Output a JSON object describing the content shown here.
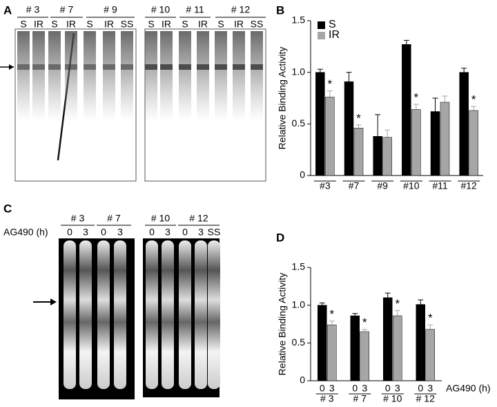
{
  "panel_labels": [
    "A",
    "B",
    "C",
    "D"
  ],
  "gel_a": {
    "groups": [
      "# 3",
      "# 7",
      "# 9",
      "# 10",
      "# 11",
      "# 12"
    ],
    "lanes": [
      "S",
      "IR",
      "S",
      "IR",
      "S",
      "IR",
      "SS",
      "S",
      "IR",
      "S",
      "IR",
      "S",
      "IR",
      "SS"
    ]
  },
  "gel_c": {
    "axis_label": "AG490 (h)",
    "groups": [
      "# 3",
      "# 7",
      "# 10",
      "# 12"
    ],
    "lanes": [
      "0",
      "3",
      "0",
      "3",
      "0",
      "3",
      "0",
      "3",
      "SS"
    ]
  },
  "chart_data": [
    {
      "type": "bar",
      "y_label": "Relative Binding Activity",
      "legend": "upper left",
      "categories": [
        "#3",
        "#7",
        "#9",
        "#10",
        "#11",
        "#12"
      ],
      "series": [
        {
          "name": "S",
          "color": "#000000",
          "values": [
            1.0,
            0.91,
            0.38,
            1.27,
            0.62,
            1.0
          ],
          "errors": [
            0.03,
            0.09,
            0.21,
            0.04,
            0.13,
            0.04
          ]
        },
        {
          "name": "IR",
          "color": "#a6a6a6",
          "values": [
            0.76,
            0.46,
            0.37,
            0.64,
            0.71,
            0.63
          ],
          "errors": [
            0.06,
            0.03,
            0.07,
            0.05,
            0.06,
            0.04
          ],
          "labels": [
            "*",
            "*",
            null,
            "*",
            null,
            "*"
          ]
        }
      ],
      "ylim": [
        0,
        1.5
      ],
      "yticks": [
        0,
        0.5,
        {
          "value": 1,
          "label": "1.0"
        },
        1.5
      ]
    },
    {
      "type": "bar",
      "y_label": "Relative Binding Activity",
      "x_label": "AG490 (h)",
      "legend": null,
      "categories": [
        "# 3",
        "# 7",
        "# 10",
        "# 12"
      ],
      "series": [
        {
          "name": "0",
          "color": "#000000",
          "values": [
            1.0,
            0.86,
            1.1,
            1.01
          ],
          "errors": [
            0.03,
            0.03,
            0.06,
            0.06
          ]
        },
        {
          "name": "3",
          "color": "#a6a6a6",
          "values": [
            0.74,
            0.65,
            0.86,
            0.68
          ],
          "errors": [
            0.05,
            0.03,
            0.07,
            0.06
          ],
          "labels": [
            "*",
            "*",
            "*",
            "*"
          ]
        }
      ],
      "ylim": [
        0,
        1.5
      ],
      "yticks": [
        0,
        0.5,
        {
          "value": 1,
          "label": "1.0"
        },
        1.5
      ]
    }
  ]
}
